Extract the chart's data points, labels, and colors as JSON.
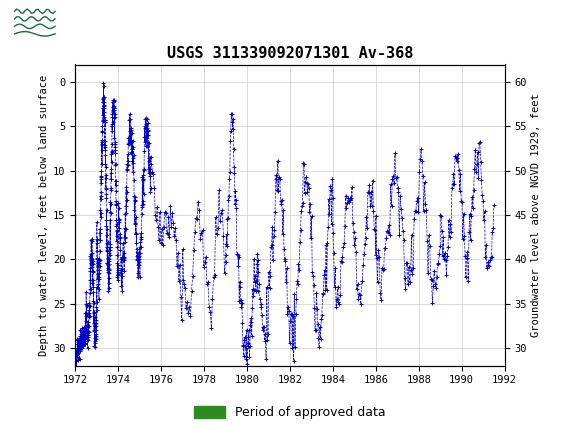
{
  "title": "USGS 311339092071301 Av-368",
  "legend_label": "Period of approved data",
  "ylabel_left": "Depth to water level, feet below land surface",
  "ylabel_right": "Groundwater level above NGVD 1929, feet",
  "header_color": "#1a6b3c",
  "plot_bg": "#ffffff",
  "line_color": "#0000cc",
  "green_bar_color": "#2e8b22",
  "xlim": [
    1972,
    1992
  ],
  "ylim_left": [
    32,
    -2
  ],
  "ylim_right": [
    28,
    62
  ],
  "xticks": [
    1972,
    1974,
    1976,
    1978,
    1980,
    1982,
    1984,
    1986,
    1988,
    1990,
    1992
  ],
  "yticks_left": [
    0,
    5,
    10,
    15,
    20,
    25,
    30
  ],
  "yticks_right": [
    30,
    35,
    40,
    45,
    50,
    55,
    60
  ],
  "seed": 42
}
